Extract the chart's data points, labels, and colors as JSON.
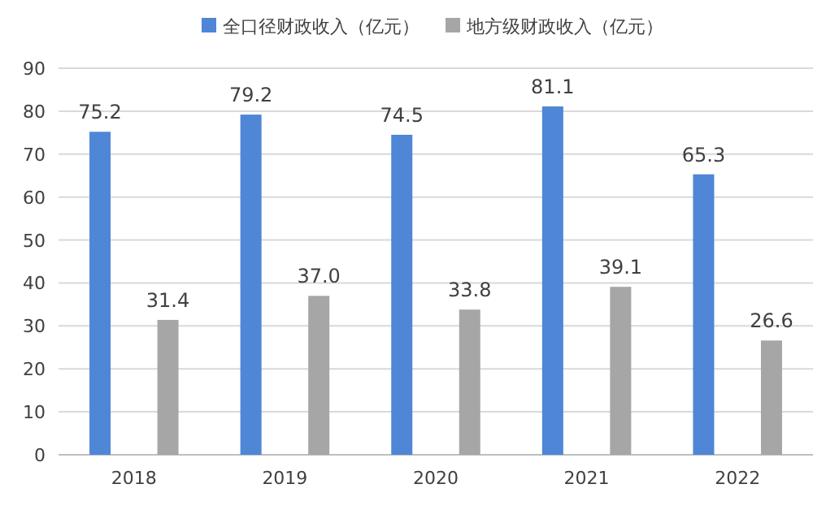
{
  "chart_data": {
    "type": "bar",
    "categories": [
      "2018",
      "2019",
      "2020",
      "2021",
      "2022"
    ],
    "series": [
      {
        "name": "全口径财政收入（亿元）",
        "color": "#4f86d6",
        "values": [
          75.2,
          79.2,
          74.5,
          81.1,
          65.3
        ],
        "value_labels": [
          "75.2",
          "79.2",
          "74.5",
          "81.1",
          "65.3"
        ]
      },
      {
        "name": "地方级财政收入（亿元）",
        "color": "#a6a6a6",
        "values": [
          31.4,
          37.0,
          33.8,
          39.1,
          26.6
        ],
        "value_labels": [
          "31.4",
          "37.0",
          "33.8",
          "39.1",
          "26.6"
        ]
      }
    ],
    "ylim": [
      0,
      90
    ],
    "yticks": [
      0,
      10,
      20,
      30,
      40,
      50,
      60,
      70,
      80,
      90
    ],
    "grid": "y",
    "legend": "top"
  }
}
